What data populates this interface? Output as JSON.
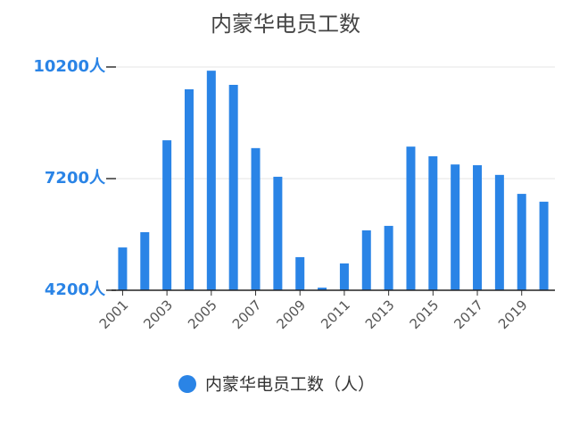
{
  "chart_data": {
    "type": "bar",
    "title": "内蒙华电员工数",
    "categories": [
      "2001",
      null,
      "2003",
      null,
      "2005",
      null,
      "2007",
      null,
      "2009",
      null,
      "2011",
      null,
      "2013",
      null,
      "2015",
      null,
      "2017",
      null,
      "2019",
      null
    ],
    "series": [
      {
        "name": "内蒙华电员工数（人）",
        "color": "#2a84e6",
        "values": [
          5350,
          5760,
          8230,
          9600,
          10100,
          9720,
          8020,
          7250,
          5090,
          4270,
          4920,
          5810,
          5930,
          8060,
          7800,
          7580,
          7560,
          7300,
          6790,
          6580
        ]
      }
    ],
    "ylim": [
      4200,
      10200
    ],
    "yticks": [
      {
        "value": 4200,
        "label": "4200人"
      },
      {
        "value": 7200,
        "label": "7200人"
      },
      {
        "value": 10200,
        "label": "10200人"
      }
    ],
    "grid": true
  }
}
